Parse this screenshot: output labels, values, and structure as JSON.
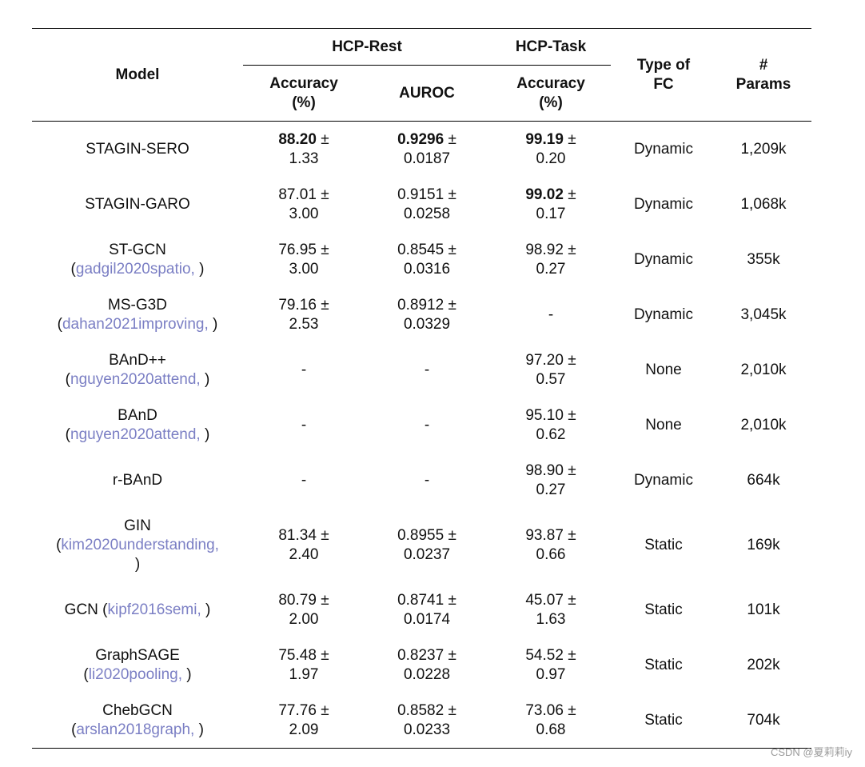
{
  "header": {
    "model": "Model",
    "hcp_rest": "HCP-Rest",
    "hcp_task": "HCP-Task",
    "accuracy_l1": "Accuracy",
    "accuracy_l2": "(%)",
    "auroc": "AUROC",
    "task_accuracy_l1": "Accuracy",
    "task_accuracy_l2": "(%)",
    "fc_l1": "Type of",
    "fc_l2": "FC",
    "params_l1": "#",
    "params_l2": "Params"
  },
  "rows": [
    {
      "model": "STAGIN-SERO",
      "cite": "",
      "acc": "88.20",
      "acc_sd": "1.33",
      "acc_bold": true,
      "auroc": "0.9296",
      "auroc_sd": "0.0187",
      "auroc_bold": true,
      "task": "99.19",
      "task_sd": "0.20",
      "task_bold": true,
      "fc": "Dynamic",
      "params": "1,209k"
    },
    {
      "model": "STAGIN-GARO",
      "cite": "",
      "acc": "87.01",
      "acc_sd": "3.00",
      "acc_bold": false,
      "auroc": "0.9151",
      "auroc_sd": "0.0258",
      "auroc_bold": false,
      "task": "99.02",
      "task_sd": "0.17",
      "task_bold": true,
      "fc": "Dynamic",
      "params": "1,068k"
    },
    {
      "model": "ST-GCN",
      "cite": "gadgil2020spatio,",
      "acc": "76.95",
      "acc_sd": "3.00",
      "acc_bold": false,
      "auroc": "0.8545",
      "auroc_sd": "0.0316",
      "auroc_bold": false,
      "task": "98.92",
      "task_sd": "0.27",
      "task_bold": false,
      "fc": "Dynamic",
      "params": "355k"
    },
    {
      "model": "MS-G3D",
      "cite": "dahan2021improving,",
      "acc": "79.16",
      "acc_sd": "2.53",
      "acc_bold": false,
      "auroc": "0.8912",
      "auroc_sd": "0.0329",
      "auroc_bold": false,
      "task": "-",
      "task_sd": "",
      "task_bold": false,
      "fc": "Dynamic",
      "params": "3,045k"
    },
    {
      "model": "BAnD++",
      "cite": "nguyen2020attend,",
      "acc": "-",
      "acc_sd": "",
      "acc_bold": false,
      "auroc": "-",
      "auroc_sd": "",
      "auroc_bold": false,
      "task": "97.20",
      "task_sd": "0.57",
      "task_bold": false,
      "fc": "None",
      "params": "2,010k"
    },
    {
      "model": "BAnD",
      "cite": "nguyen2020attend,",
      "acc": "-",
      "acc_sd": "",
      "acc_bold": false,
      "auroc": "-",
      "auroc_sd": "",
      "auroc_bold": false,
      "task": "95.10",
      "task_sd": "0.62",
      "task_bold": false,
      "fc": "None",
      "params": "2,010k"
    },
    {
      "model": "r-BAnD",
      "cite": "",
      "acc": "-",
      "acc_sd": "",
      "acc_bold": false,
      "auroc": "-",
      "auroc_sd": "",
      "auroc_bold": false,
      "task": "98.90",
      "task_sd": "0.27",
      "task_bold": false,
      "fc": "Dynamic",
      "params": "664k"
    },
    {
      "model": "GIN",
      "cite": "kim2020understanding,",
      "acc": "81.34",
      "acc_sd": "2.40",
      "acc_bold": false,
      "auroc": "0.8955",
      "auroc_sd": "0.0237",
      "auroc_bold": false,
      "task": "93.87",
      "task_sd": "0.66",
      "task_bold": false,
      "fc": "Static",
      "params": "169k"
    },
    {
      "model": "GCN",
      "cite": "kipf2016semi,",
      "acc": "80.79",
      "acc_sd": "2.00",
      "acc_bold": false,
      "auroc": "0.8741",
      "auroc_sd": "0.0174",
      "auroc_bold": false,
      "task": "45.07",
      "task_sd": "1.63",
      "task_bold": false,
      "fc": "Static",
      "params": "101k"
    },
    {
      "model": "GraphSAGE",
      "cite": "li2020pooling,",
      "acc": "75.48",
      "acc_sd": "1.97",
      "acc_bold": false,
      "auroc": "0.8237",
      "auroc_sd": "0.0228",
      "auroc_bold": false,
      "task": "54.52",
      "task_sd": "0.97",
      "task_bold": false,
      "fc": "Static",
      "params": "202k"
    },
    {
      "model": "ChebGCN",
      "cite": "arslan2018graph,",
      "acc": "77.76",
      "acc_sd": "2.09",
      "acc_bold": false,
      "auroc": "0.8582",
      "auroc_sd": "0.0233",
      "auroc_bold": false,
      "task": "73.06",
      "task_sd": "0.68",
      "task_bold": false,
      "fc": "Static",
      "params": "704k"
    }
  ],
  "pm_symbol": "±",
  "watermark": "CSDN @夏莉莉iy",
  "colors": {
    "citation": "#7b7fc4",
    "rule": "#000000"
  }
}
